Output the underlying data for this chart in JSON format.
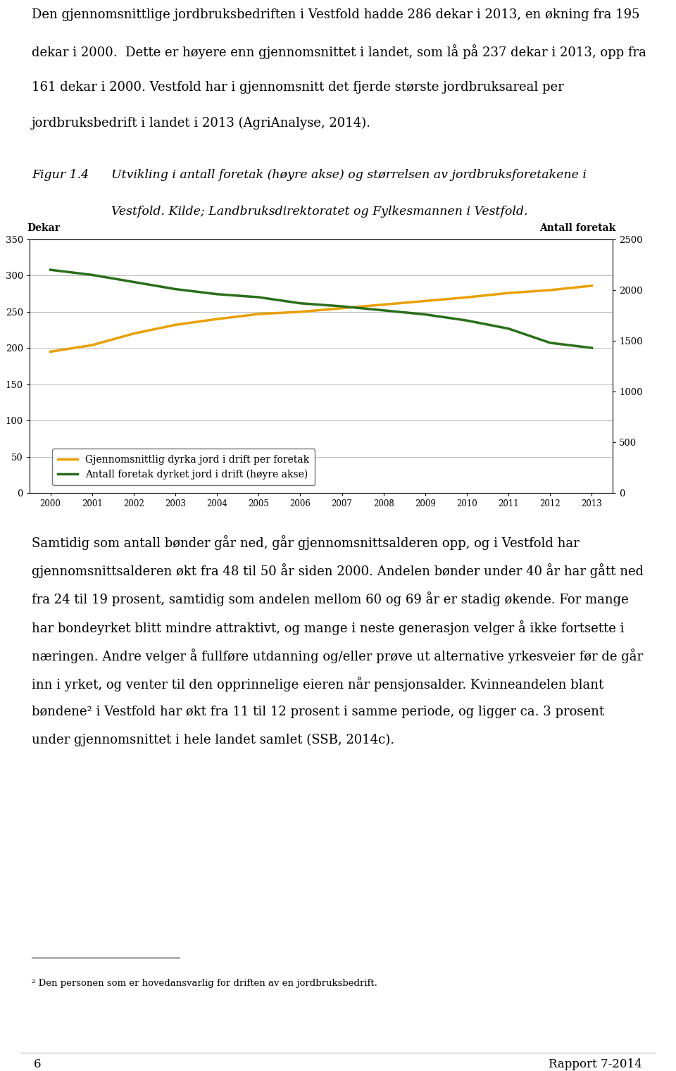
{
  "years": [
    2000,
    2001,
    2002,
    2003,
    2004,
    2005,
    2006,
    2007,
    2008,
    2009,
    2010,
    2011,
    2012,
    2013
  ],
  "orange_line": [
    195,
    204,
    220,
    232,
    240,
    247,
    250,
    255,
    260,
    265,
    270,
    276,
    280,
    286
  ],
  "green_line_right": [
    2200,
    2150,
    2080,
    2010,
    1960,
    1930,
    1870,
    1840,
    1800,
    1760,
    1700,
    1620,
    1480,
    1430
  ],
  "orange_color": "#E8A000",
  "green_color": "#2A6E1A",
  "left_ylim": [
    0,
    350
  ],
  "right_ylim": [
    0,
    2500
  ],
  "left_yticks": [
    0,
    50,
    100,
    150,
    200,
    250,
    300,
    350
  ],
  "right_yticks": [
    0,
    500,
    1000,
    1500,
    2000,
    2500
  ],
  "left_ylabel": "Dekar",
  "right_ylabel": "Antall foretak",
  "legend_orange": "Gjennomsnittlig dyrka jord i drift per foretak",
  "legend_green": "Antall foretak dyrket jord i drift (høyre akse)",
  "top_para_lines": [
    "Den gjennomsnittlige jordbruksbedriften i Vestfold hadde 286 dekar i 2013, en økning fra 195",
    "dekar i 2000.  Dette er høyere enn gjennomsnittet i landet, som lå på 237 dekar i 2013, opp fra",
    "161 dekar i 2000. Vestfold har i gjennomsnitt det fjerde største jordbruksareal per",
    "jordbruksbedrift i landet i 2013 (AgriAnalyse, 2014)."
  ],
  "fig_label": "Figur 1.4",
  "fig_cap_line1": "Utvikling i antall foretak (høyre akse) og størrelsen av jordbruksforetakene i",
  "fig_cap_line2": "Vestfold. Kilde; Landbruksdirektoratet og Fylkesmannen i Vestfold.",
  "mid_para_lines": [
    "Samtidig som antall bønder går ned, går gjennomsnittsalderen opp, og i Vestfold har",
    "gjennomsnittsalderen økt fra 48 til 50 år siden 2000. Andelen bønder under 40 år har gått ned",
    "fra 24 til 19 prosent, samtidig som andelen mellom 60 og 69 år er stadig økende. For mange",
    "har bondeyrket blitt mindre attraktivt, og mange i neste generasjon velger å ikke fortsette i",
    "næringen. Andre velger å fullføre utdanning og/eller prøve ut alternative yrkesveier før de går",
    "inn i yrket, og venter til den opprinnelige eieren når pensjonsalder. Kvinneandelen blant",
    "bøndene² i Vestfold har økt fra 11 til 12 prosent i samme periode, og ligger ca. 3 prosent",
    "under gjennomsnittet i hele landet samlet (SSB, 2014c)."
  ],
  "footnote_text": "² Den personen som er hovedansvarlig for driften av en jordbruksbedrift.",
  "page_number": "6",
  "report_label": "Rapport 7-2014"
}
